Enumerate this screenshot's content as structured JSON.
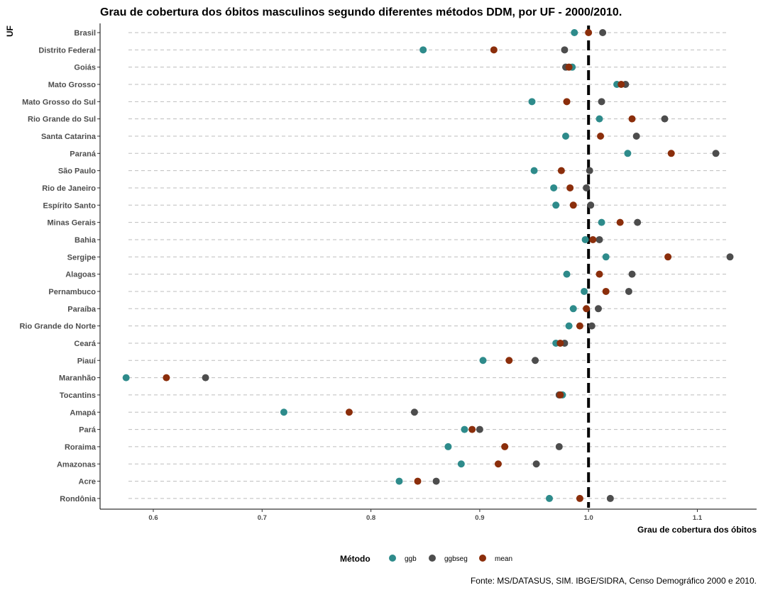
{
  "chart_data": {
    "type": "scatter",
    "title": "Grau de cobertura dos óbitos masculinos segundo diferentes métodos DDM, por UF - 2000/2010.",
    "xlabel": "Grau de cobertura dos óbitos",
    "ylabel": "UF",
    "xlim": [
      0.55,
      1.14
    ],
    "x_ticks": [
      "0.6",
      "0.7",
      "0.8",
      "0.9",
      "1.0",
      "1.1"
    ],
    "reference_line_x": 1.0,
    "grid": "dashed horizontal lines per category",
    "legend_title": "Método",
    "legend_position": "bottom",
    "caption": "Fonte: MS/DATASUS, SIM. IBGE/SIDRA, Censo Demográfico 2000 e 2010.",
    "categories": [
      "Brasil",
      "Distrito Federal",
      "Goiás",
      "Mato Grosso",
      "Mato Grosso do Sul",
      "Rio Grande do Sul",
      "Santa Catarina",
      "Paraná",
      "São Paulo",
      "Rio de Janeiro",
      "Espírito Santo",
      "Minas Gerais",
      "Bahia",
      "Sergipe",
      "Alagoas",
      "Pernambuco",
      "Paraíba",
      "Rio Grande do Norte",
      "Ceará",
      "Piauí",
      "Maranhão",
      "Tocantins",
      "Amapá",
      "Pará",
      "Roraima",
      "Amazonas",
      "Acre",
      "Rondônia"
    ],
    "series": [
      {
        "name": "ggb",
        "color": "#2e8b8b",
        "values": [
          0.987,
          0.848,
          0.985,
          1.026,
          0.948,
          1.01,
          0.979,
          1.036,
          0.95,
          0.968,
          0.97,
          1.012,
          0.997,
          1.016,
          0.98,
          0.996,
          0.986,
          0.982,
          0.97,
          0.903,
          0.575,
          0.976,
          0.72,
          0.886,
          0.871,
          0.883,
          0.826,
          0.964
        ]
      },
      {
        "name": "ggbseg",
        "color": "#4d4d4d",
        "values": [
          1.013,
          0.978,
          0.979,
          1.034,
          1.012,
          1.07,
          1.044,
          1.117,
          1.001,
          0.998,
          1.002,
          1.045,
          1.01,
          1.13,
          1.04,
          1.037,
          1.009,
          1.003,
          0.978,
          0.951,
          0.648,
          0.973,
          0.84,
          0.9,
          0.973,
          0.952,
          0.86,
          1.02
        ]
      },
      {
        "name": "mean",
        "color": "#8b2e0b",
        "values": [
          1.0,
          0.913,
          0.982,
          1.03,
          0.98,
          1.04,
          1.011,
          1.076,
          0.975,
          0.983,
          0.986,
          1.029,
          1.004,
          1.073,
          1.01,
          1.016,
          0.998,
          0.992,
          0.974,
          0.927,
          0.612,
          0.974,
          0.78,
          0.893,
          0.923,
          0.917,
          0.843,
          0.992
        ]
      }
    ]
  }
}
